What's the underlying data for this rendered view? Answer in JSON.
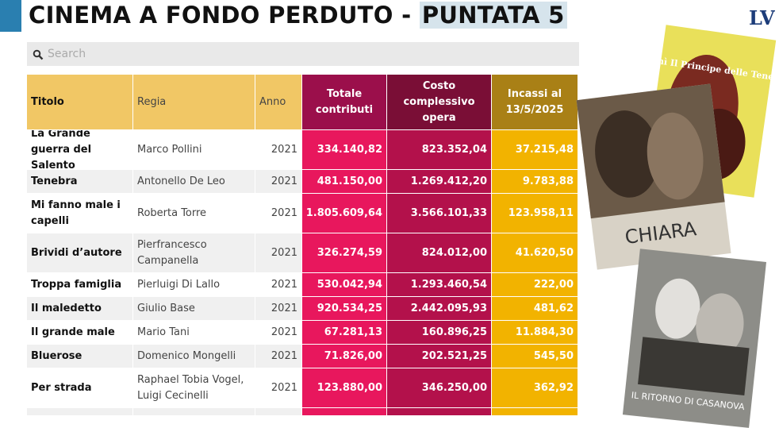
{
  "header": {
    "title": "CINEMA A FONDO PERDUTO - ",
    "highlight": "PUNTATA 5",
    "logo": "LV"
  },
  "search": {
    "placeholder": "Search"
  },
  "table": {
    "columns": [
      "Titolo",
      "Regia",
      "Anno",
      "Totale contributi",
      "Costo complessivo opera",
      "Incassi al 13/5/2025"
    ],
    "rows": [
      [
        "La Grande guerra del Salento",
        "Marco Pollini",
        "2021",
        "334.140,82",
        "823.352,04",
        "37.215,48"
      ],
      [
        "Tenebra",
        "Antonello De Leo",
        "2021",
        "481.150,00",
        "1.269.412,20",
        "9.783,88"
      ],
      [
        "Mi fanno male i capelli",
        "Roberta Torre",
        "2021",
        "1.805.609,64",
        "3.566.101,33",
        "123.958,11"
      ],
      [
        "Brividi d’autore",
        "Pierfrancesco Campanella",
        "2021",
        "326.274,59",
        "824.012,00",
        "41.620,50"
      ],
      [
        "Troppa famiglia",
        "Pierluigi Di Lallo",
        "2021",
        "530.042,94",
        "1.293.460,54",
        "222,00"
      ],
      [
        "Il maledetto",
        "Giulio Base",
        "2021",
        "920.534,25",
        "2.442.095,93",
        "481,62"
      ],
      [
        "Il grande male",
        "Mario Tani",
        "2021",
        "67.281,13",
        "160.896,25",
        "11.884,30"
      ],
      [
        "Bluerose",
        "Domenico Mongelli",
        "2021",
        "71.826,00",
        "202.521,25",
        "545,50"
      ],
      [
        "Per strada",
        "Raphael Tobia Vogel, Luigi Cecinelli",
        "2021",
        "123.880,00",
        "346.250,00",
        "362,92"
      ]
    ]
  },
  "posters": [
    "Mimì Il Principe delle Tenebre",
    "CHIARA",
    "IL RITORNO DI CASANOVA"
  ]
}
